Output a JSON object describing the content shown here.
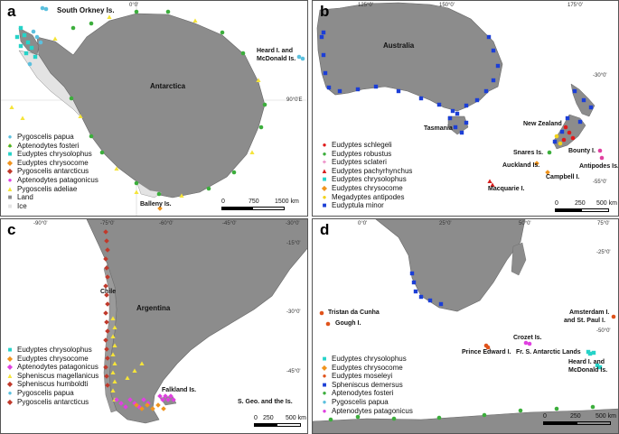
{
  "panels": {
    "a": {
      "label": "a",
      "ticks": {
        "top": "0°0'",
        "right": "90°0'E"
      },
      "places": {
        "antarctica": "Antarctica",
        "south_orkney": "South Orkney Is.",
        "heard_1": "Heard I. and",
        "heard_2": "McDonald Is.",
        "balleny": "Balleny Is."
      },
      "legend": [
        {
          "marker": "●",
          "color": "#5bc0de",
          "label": "Pygoscelis papua"
        },
        {
          "marker": "●",
          "color": "#3cae3c",
          "label": "Aptenodytes fosteri"
        },
        {
          "marker": "■",
          "color": "#26d3c8",
          "label": "Eudyptes chrysolophus"
        },
        {
          "marker": "◆",
          "color": "#f0941e",
          "label": "Eudyptes chrysocome"
        },
        {
          "marker": "◆",
          "color": "#c0392b",
          "label": "Pygoscelis antarcticus"
        },
        {
          "marker": "●",
          "color": "#e040e0",
          "label": "Aptenodytes patagonicus"
        },
        {
          "marker": "▲",
          "color": "#f5e43a",
          "label": "Pygoscelis adeliae"
        },
        {
          "marker": "■",
          "color": "#8c8c8c",
          "label": "Land"
        },
        {
          "marker": "■",
          "color": "#e3e3e3",
          "label": "Ice"
        }
      ],
      "scale": {
        "labels": [
          "0",
          "750",
          "1500 km"
        ]
      }
    },
    "b": {
      "label": "b",
      "ticks": {
        "t1": "125°0'",
        "t2": "150°0'",
        "t3": "175°0'",
        "r1": "-30°0'",
        "r2": "-55°0'"
      },
      "places": {
        "australia": "Australia",
        "tasmania": "Tasmania",
        "nz": "New Zealand",
        "snares": "Snares Is.",
        "auckland": "Auckland Is.",
        "campbell": "Campbell I.",
        "bounty": "Bounty I.",
        "antipodes": "Antipodes Is.",
        "macquarie": "Macquarie I."
      },
      "legend": [
        {
          "marker": "●",
          "color": "#e01b1b",
          "label": "Eudyptes schlegeli"
        },
        {
          "marker": "●",
          "color": "#3cae3c",
          "label": "Eudyptes robustus"
        },
        {
          "marker": "+",
          "color": "#e040a0",
          "label": "Eudyptes sclateri"
        },
        {
          "marker": "▲",
          "color": "#d81e1e",
          "label": "Eudyptes pachyrhynchus"
        },
        {
          "marker": "■",
          "color": "#26d3c8",
          "label": "Eudyptes chrysolophus"
        },
        {
          "marker": "◆",
          "color": "#f0941e",
          "label": "Eudyptes chrysocome"
        },
        {
          "marker": "●",
          "color": "#f2d31b",
          "label": "Megadyptes antipodes"
        },
        {
          "marker": "■",
          "color": "#1c3fd6",
          "label": "Eudyptula minor"
        }
      ],
      "scale": {
        "labels": [
          "0",
          "250",
          "500 km"
        ]
      }
    },
    "c": {
      "label": "c",
      "ticks": {
        "t1": "-90°0'",
        "t2": "-75°0'",
        "t3": "-60°0'",
        "t4": "-45°0'",
        "t5": "-30°0'",
        "r1": "-15°0'",
        "r2": "-30°0'",
        "r3": "-45°0'"
      },
      "places": {
        "chile": "Chile",
        "argentina": "Argentina",
        "falkland": "Falkland Is.",
        "sgeo": "S. Geo. and the Is."
      },
      "legend": [
        {
          "marker": "■",
          "color": "#26d3c8",
          "label": "Eudyptes chrysolophus"
        },
        {
          "marker": "◆",
          "color": "#f0941e",
          "label": "Eudyptes chrysocome"
        },
        {
          "marker": "◆",
          "color": "#e040e0",
          "label": "Aptenodytes patagonicus"
        },
        {
          "marker": "▲",
          "color": "#f5e43a",
          "label": "Spheniscus magellanicus"
        },
        {
          "marker": "◆",
          "color": "#c0392b",
          "label": "Spheniscus humboldti"
        },
        {
          "marker": "●",
          "color": "#5bc0de",
          "label": "Pygoscelis papua"
        },
        {
          "marker": "◆",
          "color": "#c0392b",
          "label": "Pygoscelis antarcticus"
        }
      ],
      "scale": {
        "labels": [
          "0",
          "250",
          "500 km"
        ]
      }
    },
    "d": {
      "label": "d",
      "ticks": {
        "t1": "0°0'",
        "t2": "25°0'",
        "t3": "50°0'",
        "t4": "75°0'",
        "r1": "-25°0'",
        "r2": "-50°0'"
      },
      "places": {
        "tristan": "Tristan da Cunha",
        "gough": "Gough I.",
        "amsterdam_1": "Amsterdam I.",
        "amsterdam_2": "and St. Paul I.",
        "crozet": "Crozet Is.",
        "prince": "Prince Edward I.",
        "kerguelen": "Fr. S. Antarctic Lands",
        "heard_1": "Heard I. and",
        "heard_2": "McDonald Is."
      },
      "legend": [
        {
          "marker": "■",
          "color": "#26d3c8",
          "label": "Eudyptes chrysolophus"
        },
        {
          "marker": "◆",
          "color": "#f0941e",
          "label": "Eudyptes chrysocome"
        },
        {
          "marker": "●",
          "color": "#e0531b",
          "label": "Eudyptes moseleyi"
        },
        {
          "marker": "■",
          "color": "#1c3fd6",
          "label": "Spheniscus demersus"
        },
        {
          "marker": "●",
          "color": "#3cae3c",
          "label": "Aptenodytes fosteri"
        },
        {
          "marker": "●",
          "color": "#5bc0de",
          "label": "Pygoscelis papua"
        },
        {
          "marker": "●",
          "color": "#e040e0",
          "label": "Aptenodytes patagonicus"
        }
      ],
      "scale": {
        "labels": [
          "0",
          "250",
          "500 km"
        ]
      }
    }
  }
}
